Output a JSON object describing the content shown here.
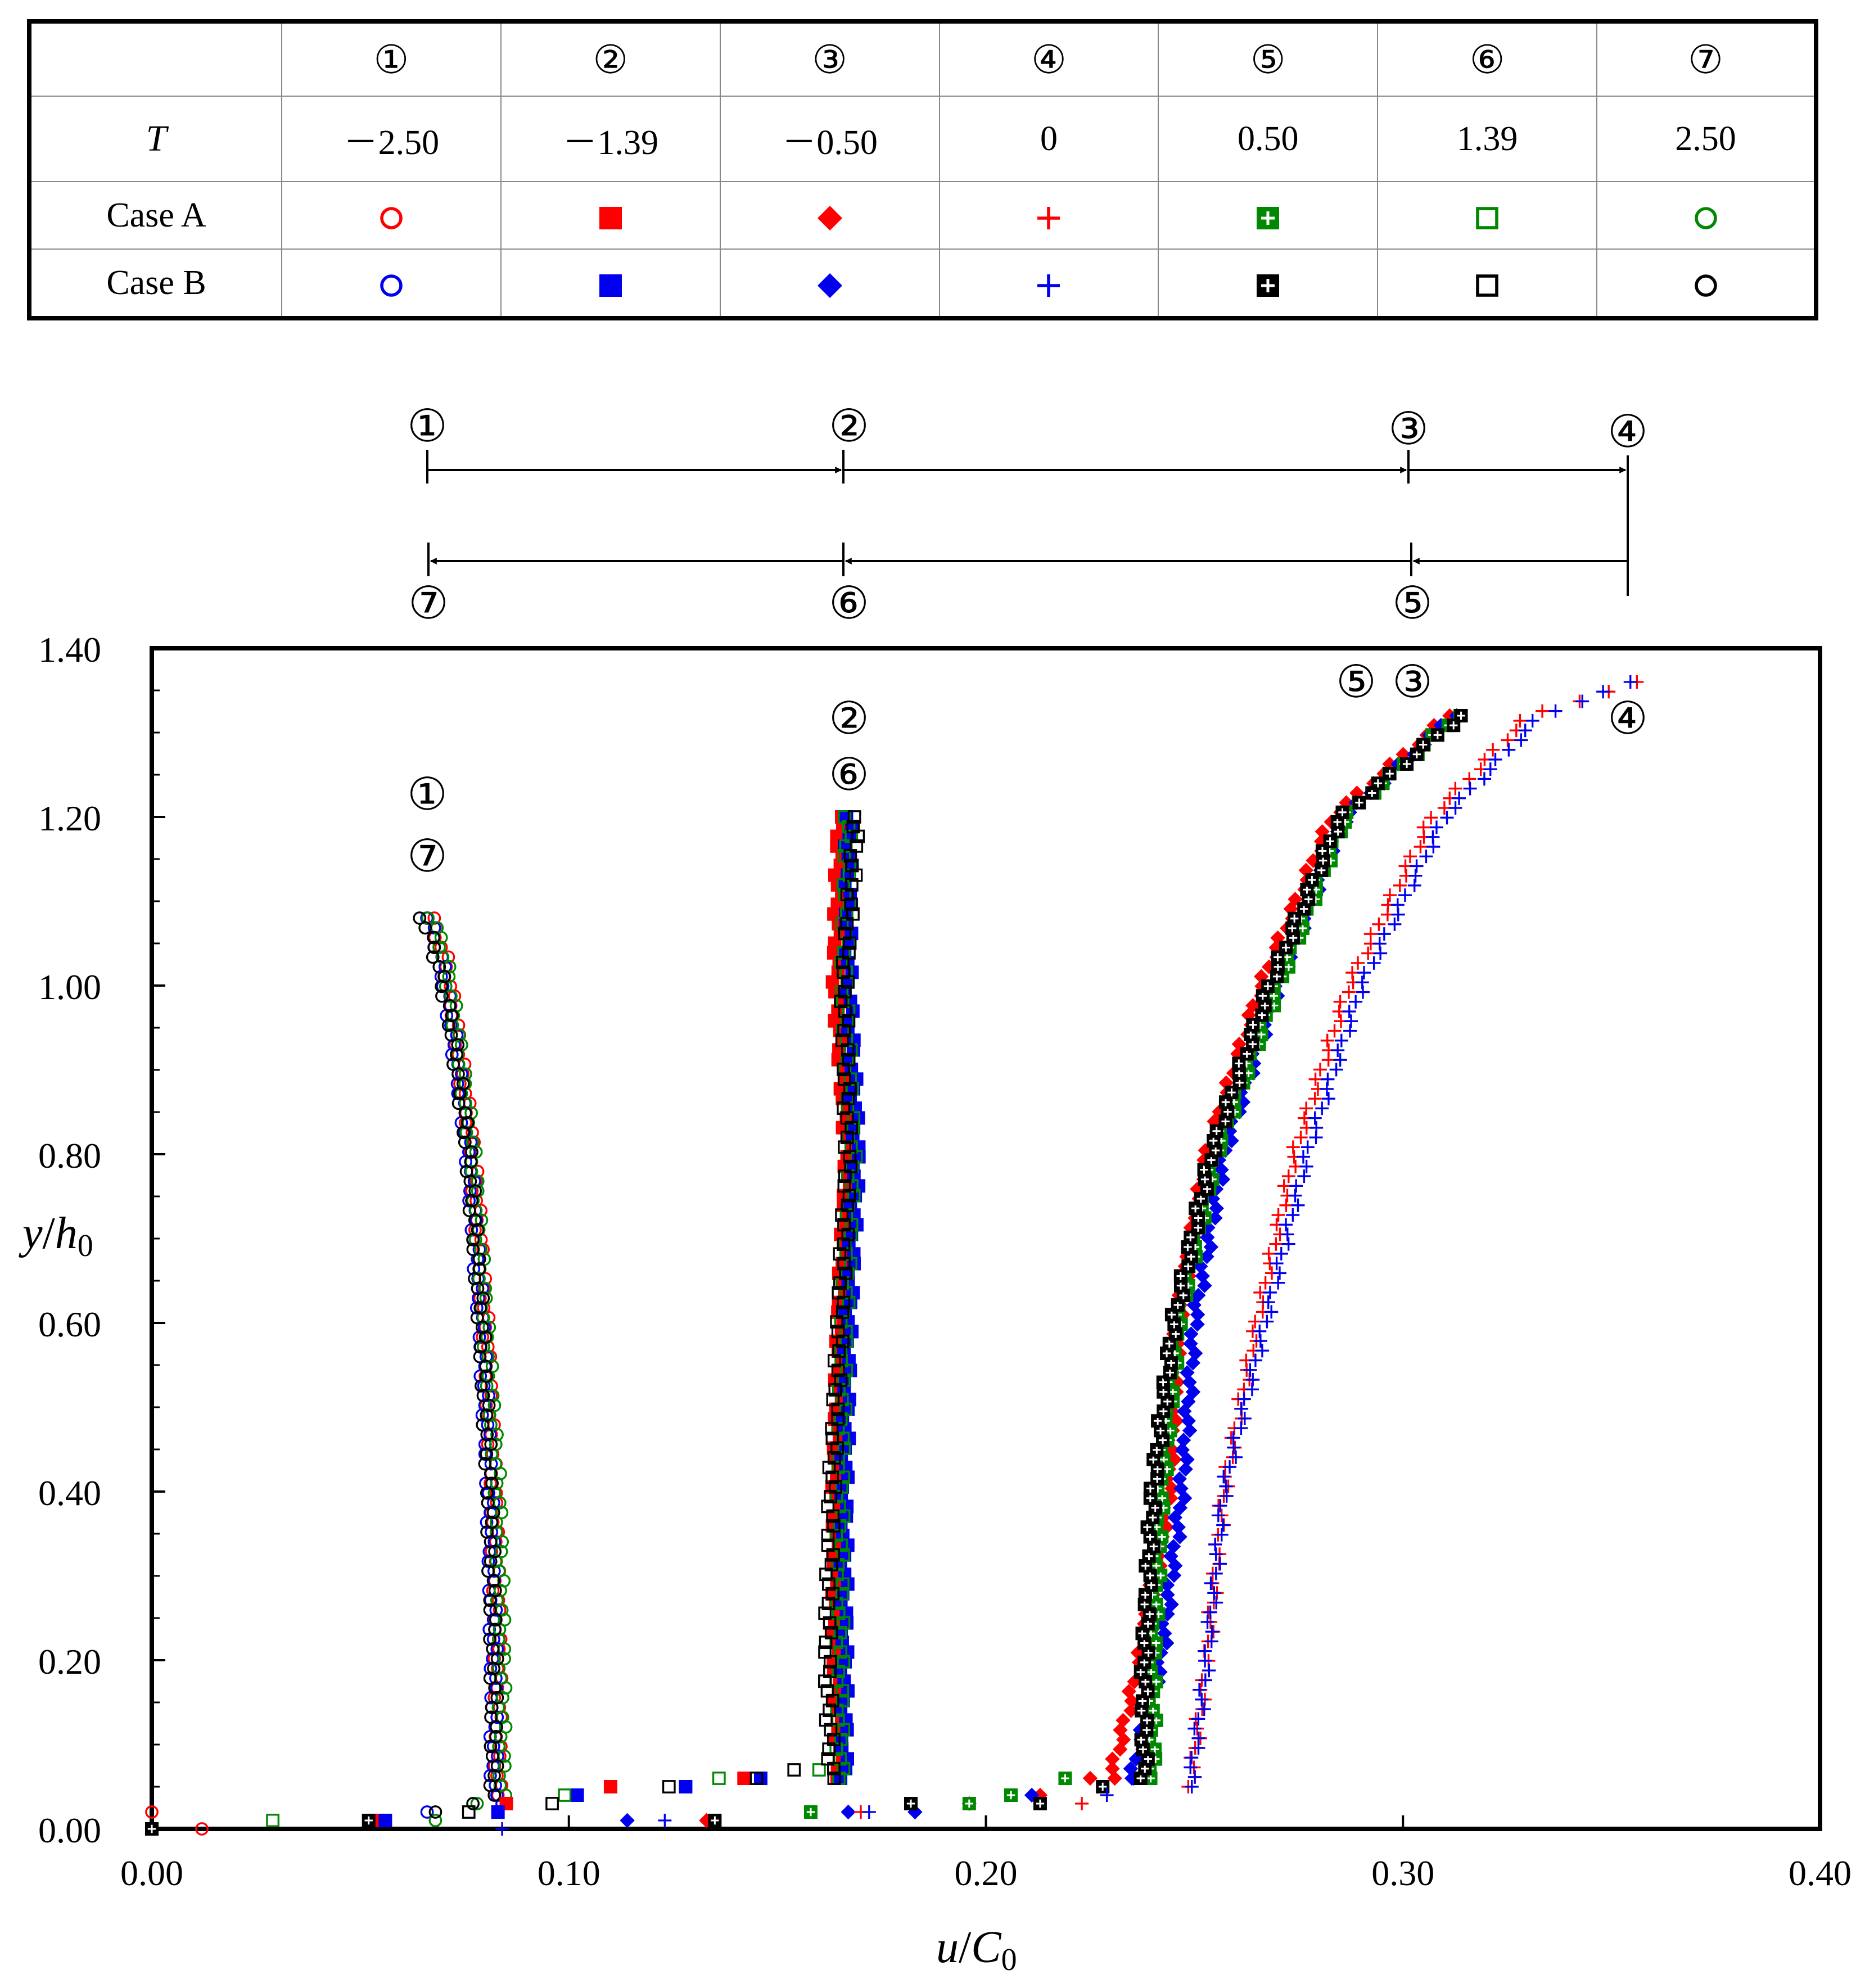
{
  "table": {
    "header": [
      "",
      "①",
      "②",
      "③",
      "④",
      "⑤",
      "⑥",
      "⑦"
    ],
    "t_row": {
      "label": "T",
      "values": [
        "－2.50",
        "－1.39",
        "－0.50",
        "0",
        "0.50",
        "1.39",
        "2.50"
      ]
    },
    "case_a": {
      "label": "Case A",
      "markers": [
        "circle-open",
        "square-filled",
        "diamond-filled",
        "plus",
        "square-plus",
        "square-open",
        "circle-open"
      ],
      "color": [
        "#ff0000",
        "#ff0000",
        "#ff0000",
        "#ff0000",
        "#008800",
        "#008800",
        "#008800"
      ]
    },
    "case_b": {
      "label": "Case B",
      "markers": [
        "circle-open",
        "square-filled",
        "diamond-filled",
        "plus",
        "square-plus",
        "square-open",
        "circle-open"
      ],
      "color": [
        "#0000ee",
        "#0000ee",
        "#0000ee",
        "#0000ee",
        "#000000",
        "#000000",
        "#000000"
      ]
    }
  },
  "arrows": {
    "top_labels": [
      "①",
      "②",
      "③",
      "④"
    ],
    "bottom_labels": [
      "⑦",
      "⑥",
      "⑤"
    ]
  },
  "curve_labels": {
    "c1": "①",
    "c7": "⑦",
    "c2": "②",
    "c6": "⑥",
    "c5": "⑤",
    "c3": "③",
    "c4": "④"
  },
  "chart_data": {
    "type": "scatter",
    "xlabel": "u/C0",
    "ylabel": "y/h0",
    "xlim": [
      0,
      0.4
    ],
    "ylim": [
      0,
      1.4
    ],
    "xticks": [
      "0.00",
      "0.10",
      "0.20",
      "0.30",
      "0.40"
    ],
    "yticks": [
      "0.00",
      "0.20",
      "0.40",
      "0.60",
      "0.80",
      "1.00",
      "1.20",
      "1.40"
    ],
    "series": [
      {
        "name": "Case A ①",
        "marker": "circle-open",
        "color": "#ff0000",
        "y_max": 1.08,
        "profile": [
          [
            0.083,
            0.04
          ],
          [
            0.083,
            0.1
          ],
          [
            0.083,
            0.2
          ],
          [
            0.082,
            0.4
          ],
          [
            0.08,
            0.6
          ],
          [
            0.077,
            0.8
          ],
          [
            0.073,
            0.95
          ],
          [
            0.07,
            1.04
          ],
          [
            0.067,
            1.08
          ]
        ],
        "near_bed": [
          [
            0.0,
            0.02
          ],
          [
            0.012,
            0.0
          ],
          [
            0.055,
            0.01
          ],
          [
            0.084,
            0.03
          ]
        ]
      },
      {
        "name": "Case B ①",
        "marker": "circle-open",
        "color": "#0000ee",
        "y_max": 1.08,
        "profile": [
          [
            0.082,
            0.04
          ],
          [
            0.082,
            0.1
          ],
          [
            0.082,
            0.2
          ],
          [
            0.081,
            0.4
          ],
          [
            0.079,
            0.6
          ],
          [
            0.076,
            0.8
          ],
          [
            0.072,
            0.95
          ],
          [
            0.069,
            1.04
          ],
          [
            0.066,
            1.08
          ]
        ],
        "near_bed": [
          [
            0.0,
            0.0
          ],
          [
            0.066,
            0.02
          ],
          [
            0.084,
            0.03
          ]
        ]
      },
      {
        "name": "Case A ⑦",
        "marker": "circle-open",
        "color": "#008800",
        "y_max": 1.08,
        "profile": [
          [
            0.084,
            0.04
          ],
          [
            0.084,
            0.1
          ],
          [
            0.084,
            0.2
          ],
          [
            0.083,
            0.4
          ],
          [
            0.08,
            0.6
          ],
          [
            0.077,
            0.8
          ],
          [
            0.073,
            0.95
          ],
          [
            0.07,
            1.04
          ],
          [
            0.067,
            1.08
          ]
        ],
        "near_bed": [
          [
            0.0,
            0.0
          ],
          [
            0.068,
            0.01
          ],
          [
            0.078,
            0.03
          ]
        ]
      },
      {
        "name": "Case B ⑦",
        "marker": "circle-open",
        "color": "#000000",
        "y_max": 1.08,
        "profile": [
          [
            0.082,
            0.04
          ],
          [
            0.082,
            0.1
          ],
          [
            0.082,
            0.2
          ],
          [
            0.081,
            0.4
          ],
          [
            0.079,
            0.6
          ],
          [
            0.076,
            0.8
          ],
          [
            0.072,
            0.95
          ],
          [
            0.068,
            1.04
          ],
          [
            0.065,
            1.08
          ]
        ],
        "near_bed": [
          [
            0.0,
            0.0
          ],
          [
            0.068,
            0.02
          ],
          [
            0.077,
            0.03
          ]
        ]
      },
      {
        "name": "Case A ②",
        "marker": "square-filled",
        "color": "#ff0000",
        "y_max": 1.2,
        "profile": [
          [
            0.165,
            0.06
          ],
          [
            0.164,
            0.2
          ],
          [
            0.164,
            0.4
          ],
          [
            0.165,
            0.6
          ],
          [
            0.167,
            0.8
          ],
          [
            0.164,
            1.0
          ],
          [
            0.165,
            1.2
          ]
        ],
        "near_bed": [
          [
            0.053,
            0.01
          ],
          [
            0.085,
            0.03
          ],
          [
            0.11,
            0.05
          ],
          [
            0.142,
            0.06
          ]
        ]
      },
      {
        "name": "Case B ②",
        "marker": "square-filled",
        "color": "#0000ee",
        "y_max": 1.2,
        "profile": [
          [
            0.166,
            0.06
          ],
          [
            0.166,
            0.2
          ],
          [
            0.166,
            0.4
          ],
          [
            0.167,
            0.6
          ],
          [
            0.169,
            0.8
          ],
          [
            0.167,
            1.0
          ],
          [
            0.167,
            1.2
          ]
        ],
        "near_bed": [
          [
            0.056,
            0.01
          ],
          [
            0.083,
            0.02
          ],
          [
            0.102,
            0.04
          ],
          [
            0.128,
            0.05
          ],
          [
            0.146,
            0.06
          ]
        ]
      },
      {
        "name": "Case A ⑥",
        "marker": "square-open",
        "color": "#008800",
        "y_max": 1.2,
        "profile": [
          [
            0.165,
            0.06
          ],
          [
            0.165,
            0.2
          ],
          [
            0.165,
            0.4
          ],
          [
            0.166,
            0.6
          ],
          [
            0.168,
            0.8
          ],
          [
            0.166,
            1.0
          ],
          [
            0.167,
            1.2
          ]
        ],
        "near_bed": [
          [
            0.029,
            0.01
          ],
          [
            0.099,
            0.04
          ],
          [
            0.136,
            0.06
          ],
          [
            0.16,
            0.07
          ]
        ]
      },
      {
        "name": "Case B ⑥",
        "marker": "square-open",
        "color": "#000000",
        "y_max": 1.2,
        "profile": [
          [
            0.163,
            0.06
          ],
          [
            0.162,
            0.2
          ],
          [
            0.163,
            0.4
          ],
          [
            0.165,
            0.6
          ],
          [
            0.167,
            0.8
          ],
          [
            0.166,
            1.0
          ],
          [
            0.169,
            1.2
          ]
        ],
        "near_bed": [
          [
            0.0,
            0.0
          ],
          [
            0.076,
            0.02
          ],
          [
            0.096,
            0.03
          ],
          [
            0.124,
            0.05
          ],
          [
            0.145,
            0.06
          ],
          [
            0.154,
            0.07
          ]
        ]
      },
      {
        "name": "Case A ③",
        "marker": "diamond-filled",
        "color": "#ff0000",
        "y_max": 1.32,
        "profile": [
          [
            0.23,
            0.06
          ],
          [
            0.237,
            0.2
          ],
          [
            0.244,
            0.4
          ],
          [
            0.246,
            0.6
          ],
          [
            0.253,
            0.8
          ],
          [
            0.266,
            1.0
          ],
          [
            0.283,
            1.2
          ],
          [
            0.311,
            1.32
          ]
        ],
        "near_bed": [
          [
            0.133,
            0.01
          ],
          [
            0.196,
            0.03
          ],
          [
            0.213,
            0.04
          ],
          [
            0.225,
            0.06
          ]
        ]
      },
      {
        "name": "Case B ③",
        "marker": "diamond-filled",
        "color": "#0000ee",
        "y_max": 1.32,
        "profile": [
          [
            0.235,
            0.06
          ],
          [
            0.242,
            0.2
          ],
          [
            0.247,
            0.4
          ],
          [
            0.25,
            0.6
          ],
          [
            0.257,
            0.8
          ],
          [
            0.27,
            1.0
          ],
          [
            0.286,
            1.2
          ],
          [
            0.312,
            1.32
          ]
        ],
        "near_bed": [
          [
            0.114,
            0.01
          ],
          [
            0.167,
            0.02
          ],
          [
            0.183,
            0.02
          ],
          [
            0.211,
            0.04
          ],
          [
            0.235,
            0.06
          ]
        ]
      },
      {
        "name": "Case A ⑤",
        "marker": "square-plus",
        "color": "#008800",
        "y_max": 1.32,
        "profile": [
          [
            0.24,
            0.06
          ],
          [
            0.24,
            0.2
          ],
          [
            0.242,
            0.4
          ],
          [
            0.246,
            0.6
          ],
          [
            0.255,
            0.8
          ],
          [
            0.27,
            1.0
          ],
          [
            0.286,
            1.2
          ],
          [
            0.313,
            1.32
          ]
        ],
        "near_bed": [
          [
            0.158,
            0.02
          ],
          [
            0.196,
            0.03
          ],
          [
            0.206,
            0.04
          ],
          [
            0.219,
            0.06
          ]
        ]
      },
      {
        "name": "Case B ⑤",
        "marker": "square-plus",
        "color": "#000000",
        "y_max": 1.32,
        "profile": [
          [
            0.238,
            0.06
          ],
          [
            0.238,
            0.2
          ],
          [
            0.24,
            0.4
          ],
          [
            0.245,
            0.6
          ],
          [
            0.254,
            0.8
          ],
          [
            0.268,
            1.0
          ],
          [
            0.285,
            1.2
          ],
          [
            0.314,
            1.32
          ]
        ],
        "near_bed": [
          [
            0.0,
            0.0
          ],
          [
            0.052,
            0.01
          ],
          [
            0.135,
            0.01
          ],
          [
            0.182,
            0.03
          ],
          [
            0.213,
            0.03
          ],
          [
            0.228,
            0.05
          ]
        ]
      },
      {
        "name": "Case A ④",
        "marker": "plus",
        "color": "#ff0000",
        "y_max": 1.36,
        "profile": [
          [
            0.249,
            0.05
          ],
          [
            0.253,
            0.2
          ],
          [
            0.257,
            0.4
          ],
          [
            0.265,
            0.6
          ],
          [
            0.274,
            0.8
          ],
          [
            0.287,
            1.0
          ],
          [
            0.307,
            1.2
          ],
          [
            0.33,
            1.32
          ],
          [
            0.357,
            1.36
          ]
        ],
        "near_bed": [
          [
            0.17,
            0.02
          ],
          [
            0.223,
            0.03
          ]
        ]
      },
      {
        "name": "Case B ④",
        "marker": "plus",
        "color": "#0000ee",
        "y_max": 1.36,
        "profile": [
          [
            0.249,
            0.05
          ],
          [
            0.253,
            0.2
          ],
          [
            0.257,
            0.4
          ],
          [
            0.267,
            0.6
          ],
          [
            0.277,
            0.8
          ],
          [
            0.29,
            1.0
          ],
          [
            0.31,
            1.2
          ],
          [
            0.333,
            1.32
          ],
          [
            0.355,
            1.36
          ]
        ],
        "near_bed": [
          [
            0.084,
            0.0
          ],
          [
            0.123,
            0.01
          ],
          [
            0.172,
            0.02
          ],
          [
            0.229,
            0.04
          ]
        ]
      }
    ]
  }
}
